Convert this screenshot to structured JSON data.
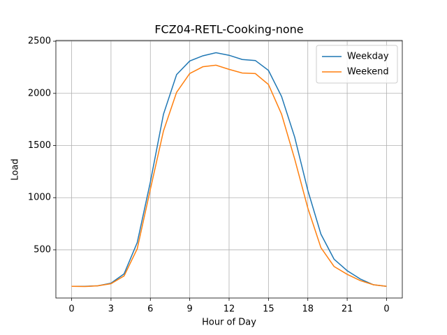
{
  "chart_data": {
    "type": "line",
    "title": "FCZ04-RETL-Cooking-none",
    "x_label": "Hour of Day",
    "y_label": "Load",
    "x": [
      0,
      1,
      2,
      3,
      4,
      5,
      6,
      7,
      8,
      9,
      10,
      11,
      12,
      13,
      14,
      15,
      16,
      17,
      18,
      19,
      20,
      21,
      22,
      23,
      24
    ],
    "series": [
      {
        "name": "Weekday",
        "color": "#1f77b4",
        "values": [
          150,
          150,
          155,
          180,
          270,
          570,
          1150,
          1800,
          2180,
          2310,
          2360,
          2390,
          2365,
          2325,
          2315,
          2220,
          1970,
          1580,
          1070,
          650,
          410,
          300,
          220,
          165,
          150
        ]
      },
      {
        "name": "Weekend",
        "color": "#ff7f0e",
        "values": [
          150,
          148,
          155,
          175,
          250,
          510,
          1080,
          1640,
          2010,
          2190,
          2255,
          2270,
          2230,
          2195,
          2190,
          2085,
          1800,
          1370,
          900,
          520,
          340,
          265,
          205,
          165,
          150
        ]
      }
    ],
    "xlim": [
      -1.2,
      25.2
    ],
    "xticks": [
      0,
      3,
      6,
      9,
      12,
      15,
      18,
      21,
      {
        "value": 24,
        "label": "0"
      }
    ],
    "ylim": [
      38,
      2507
    ],
    "yticks": [
      500,
      1000,
      1500,
      2000,
      2500
    ],
    "grid": true,
    "legend": "upper right"
  }
}
